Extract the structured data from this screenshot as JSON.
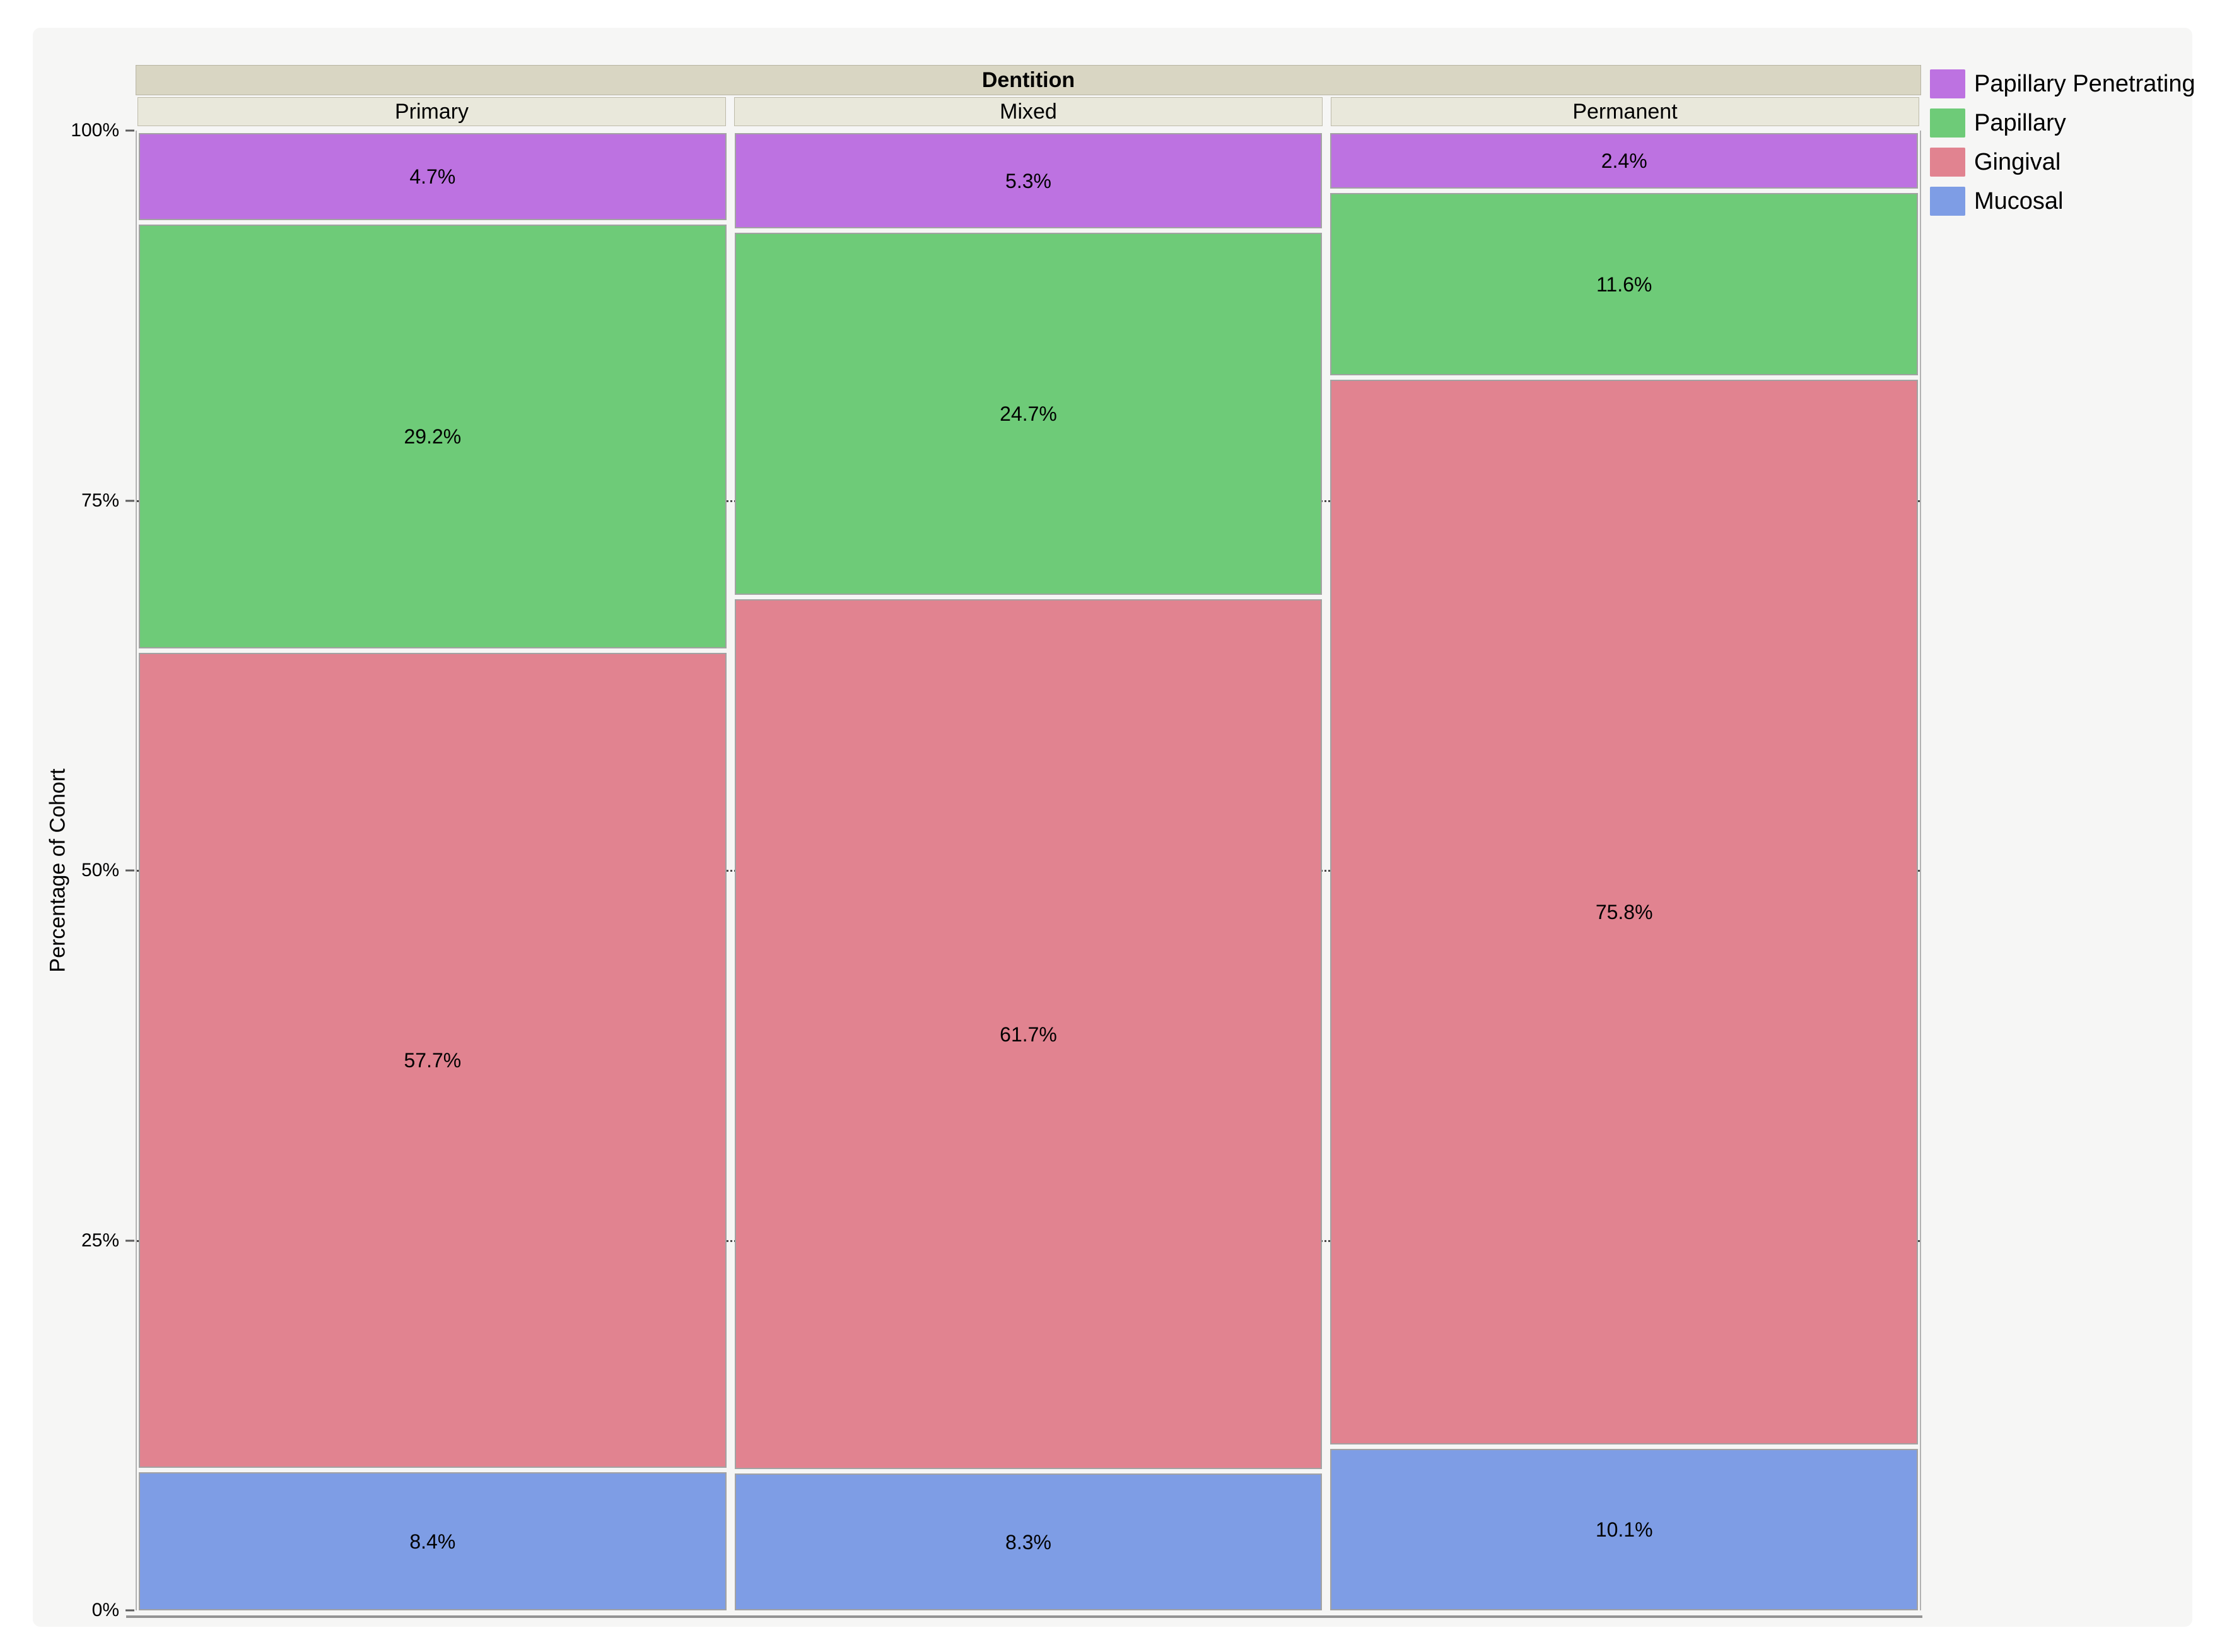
{
  "window": {
    "page_background": "#ffffff",
    "panel_background": "#f6f6f5"
  },
  "chart_data": {
    "type": "mosaic-stacked-bar",
    "group_header": "Dentition",
    "ylabel": "Percentage of Cohort",
    "ylim": [
      0,
      100
    ],
    "value_suffix": "%",
    "grid": true,
    "gridlines": [
      25,
      50,
      75
    ],
    "yticks": [
      {
        "value": 0,
        "label": "0%"
      },
      {
        "value": 25,
        "label": "25%"
      },
      {
        "value": 50,
        "label": "50%"
      },
      {
        "value": 75,
        "label": "75%"
      },
      {
        "value": 100,
        "label": "100%"
      }
    ],
    "categories": [
      "Primary",
      "Mixed",
      "Permanent"
    ],
    "series": [
      {
        "name": "Papillary Penetrating",
        "color": "#bd72e1",
        "values": [
          4.7,
          5.3,
          2.4
        ]
      },
      {
        "name": "Papillary",
        "color": "#6ecb78",
        "values": [
          29.2,
          24.7,
          11.6
        ]
      },
      {
        "name": "Gingival",
        "color": "#e18390",
        "values": [
          57.7,
          61.7,
          75.8
        ]
      },
      {
        "name": "Mucosal",
        "color": "#7e9de5",
        "values": [
          8.4,
          8.3,
          10.1
        ]
      }
    ],
    "segment_labels": {
      "Primary": [
        "4.7%",
        "29.2%",
        "57.7%",
        "8.4%"
      ],
      "Mixed": [
        "5.3%",
        "24.7%",
        "61.7%",
        "8.3%"
      ],
      "Permanent": [
        "2.4%",
        "11.6%",
        "75.8%",
        "10.1%"
      ]
    },
    "legend_position": "right",
    "header_fill": "#d9d6c3",
    "subheader_fill": "#e9e8db"
  },
  "legend": {
    "items": [
      "Papillary Penetrating",
      "Papillary",
      "Gingival",
      "Mucosal"
    ]
  }
}
